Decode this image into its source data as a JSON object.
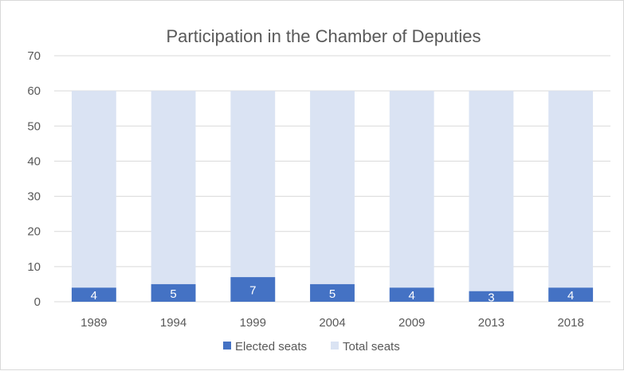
{
  "chart_data": {
    "type": "bar",
    "stacking": "overlapped",
    "title": "Participation in the Chamber of Deputies",
    "xlabel": "",
    "ylabel": "",
    "categories": [
      "1989",
      "1994",
      "1999",
      "2004",
      "2009",
      "2013",
      "2018"
    ],
    "series": [
      {
        "name": "Elected seats",
        "values": [
          4,
          5,
          7,
          5,
          4,
          3,
          4
        ],
        "color": "#4472c4",
        "data_labels": true
      },
      {
        "name": "Total seats",
        "values": [
          60,
          60,
          60,
          60,
          60,
          60,
          60
        ],
        "color": "#dae3f3",
        "data_labels": false
      }
    ],
    "ylim": [
      0,
      70
    ],
    "yticks": [
      0,
      10,
      20,
      30,
      40,
      50,
      60,
      70
    ],
    "grid": true,
    "legend_position": "bottom"
  }
}
